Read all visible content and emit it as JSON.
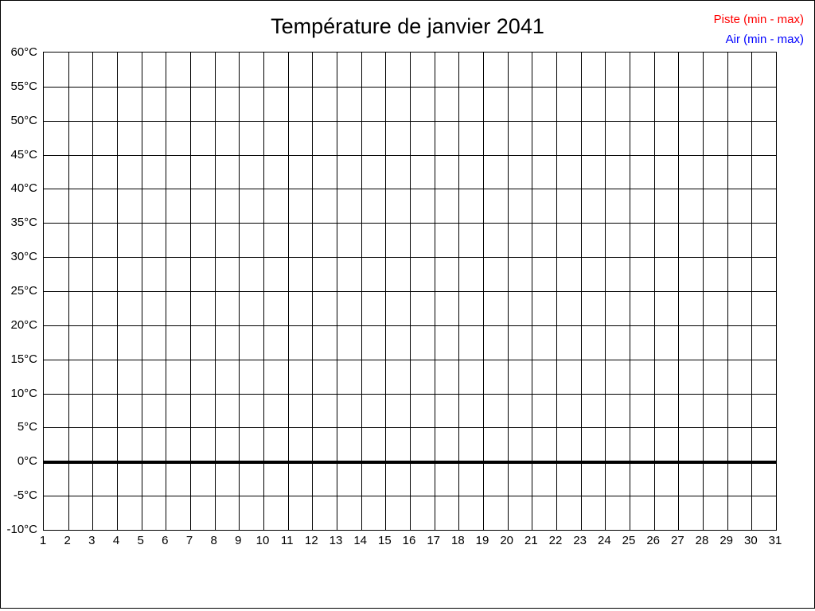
{
  "page": {
    "title": "Température de janvier 2041"
  },
  "legend": {
    "items": [
      {
        "name": "piste",
        "label": "Piste (min - max)",
        "color": "#ff0000"
      },
      {
        "name": "air",
        "label": "Air (min - max)",
        "color": "#0000ff"
      }
    ],
    "position": "top-right"
  },
  "chart_data": {
    "type": "line",
    "title": "Température de janvier 2041",
    "xlabel": "",
    "ylabel": "",
    "x_ticks": [
      1,
      2,
      3,
      4,
      5,
      6,
      7,
      8,
      9,
      10,
      11,
      12,
      13,
      14,
      15,
      16,
      17,
      18,
      19,
      20,
      21,
      22,
      23,
      24,
      25,
      26,
      27,
      28,
      29,
      30,
      31
    ],
    "y_ticks": [
      60,
      55,
      50,
      45,
      40,
      35,
      30,
      25,
      20,
      15,
      10,
      5,
      0,
      -5,
      -10
    ],
    "y_tick_unit": "°C",
    "xlim": [
      1,
      31
    ],
    "ylim": [
      -10,
      60
    ],
    "grid": true,
    "grid_color": "#000000",
    "background": "#ffffff",
    "legend_position": "top-right",
    "series": [
      {
        "name": "Piste (min - max)",
        "color": "#ff0000",
        "values": []
      },
      {
        "name": "Air (min - max)",
        "color": "#0000ff",
        "values": []
      }
    ],
    "annotations": [
      {
        "type": "hline",
        "y": 0,
        "color": "#000000",
        "thickness": 4,
        "note": "bold zero-degree reference line"
      }
    ]
  }
}
